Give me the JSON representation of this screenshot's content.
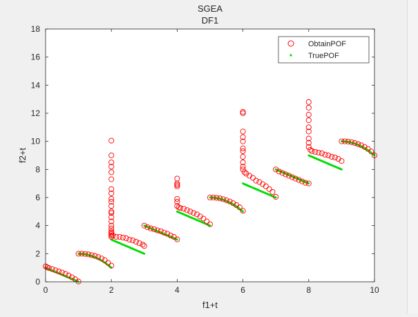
{
  "chart_data": {
    "type": "scatter",
    "title": [
      "SGEA",
      "DF1"
    ],
    "xlabel": "f1+t",
    "ylabel": "f2+t",
    "xlim": [
      0,
      10
    ],
    "ylim": [
      0,
      18
    ],
    "xticks": [
      0,
      2,
      4,
      6,
      8,
      10
    ],
    "yticks": [
      0,
      2,
      4,
      6,
      8,
      10,
      12,
      14,
      16,
      18
    ],
    "grid": false,
    "legend_placement": "top-right",
    "series": [
      {
        "name": "ObtainPOF",
        "marker": "circle-open",
        "color": "#ff0000",
        "points": [
          [
            0.0,
            1.1
          ],
          [
            0.05,
            1.03
          ],
          [
            0.1,
            0.98
          ],
          [
            0.2,
            0.9
          ],
          [
            0.3,
            0.82
          ],
          [
            0.4,
            0.74
          ],
          [
            0.5,
            0.66
          ],
          [
            0.6,
            0.56
          ],
          [
            0.7,
            0.45
          ],
          [
            0.8,
            0.32
          ],
          [
            0.9,
            0.18
          ],
          [
            1.0,
            0.02
          ],
          [
            1.0,
            2.0
          ],
          [
            1.1,
            2.0
          ],
          [
            1.2,
            1.98
          ],
          [
            1.3,
            1.95
          ],
          [
            1.4,
            1.9
          ],
          [
            1.5,
            1.84
          ],
          [
            1.6,
            1.76
          ],
          [
            1.7,
            1.66
          ],
          [
            1.8,
            1.54
          ],
          [
            1.9,
            1.35
          ],
          [
            2.0,
            1.15
          ],
          [
            2.0,
            10.05
          ],
          [
            2.0,
            9.0
          ],
          [
            2.0,
            8.5
          ],
          [
            2.0,
            8.2
          ],
          [
            2.0,
            7.8
          ],
          [
            2.0,
            7.3
          ],
          [
            2.0,
            6.6
          ],
          [
            2.0,
            6.3
          ],
          [
            2.0,
            5.9
          ],
          [
            2.0,
            5.7
          ],
          [
            2.0,
            5.4
          ],
          [
            2.0,
            5.0
          ],
          [
            2.0,
            4.9
          ],
          [
            2.0,
            4.6
          ],
          [
            2.0,
            4.3
          ],
          [
            2.0,
            4.0
          ],
          [
            2.0,
            3.8
          ],
          [
            2.0,
            3.6
          ],
          [
            2.0,
            3.5
          ],
          [
            2.0,
            3.4
          ],
          [
            2.0,
            3.3
          ],
          [
            2.0,
            3.2
          ],
          [
            2.05,
            3.3
          ],
          [
            2.15,
            3.2
          ],
          [
            2.25,
            3.2
          ],
          [
            2.35,
            3.15
          ],
          [
            2.45,
            3.1
          ],
          [
            2.55,
            3.0
          ],
          [
            2.65,
            2.95
          ],
          [
            2.75,
            2.85
          ],
          [
            2.85,
            2.75
          ],
          [
            2.95,
            2.65
          ],
          [
            3.0,
            2.55
          ],
          [
            3.0,
            4.0
          ],
          [
            3.1,
            3.88
          ],
          [
            3.2,
            3.8
          ],
          [
            3.3,
            3.74
          ],
          [
            3.4,
            3.66
          ],
          [
            3.5,
            3.6
          ],
          [
            3.6,
            3.5
          ],
          [
            3.7,
            3.42
          ],
          [
            3.8,
            3.3
          ],
          [
            3.9,
            3.2
          ],
          [
            4.0,
            3.02
          ],
          [
            4.0,
            7.35
          ],
          [
            4.0,
            7.0
          ],
          [
            4.0,
            6.9
          ],
          [
            4.0,
            6.8
          ],
          [
            4.0,
            5.9
          ],
          [
            4.0,
            5.7
          ],
          [
            4.0,
            5.4
          ],
          [
            4.05,
            5.3
          ],
          [
            4.1,
            5.25
          ],
          [
            4.2,
            5.2
          ],
          [
            4.3,
            5.1
          ],
          [
            4.4,
            5.0
          ],
          [
            4.5,
            4.9
          ],
          [
            4.6,
            4.8
          ],
          [
            4.7,
            4.65
          ],
          [
            4.8,
            4.5
          ],
          [
            4.9,
            4.3
          ],
          [
            5.0,
            4.1
          ],
          [
            5.0,
            6.0
          ],
          [
            5.1,
            6.0
          ],
          [
            5.2,
            5.98
          ],
          [
            5.3,
            5.94
          ],
          [
            5.4,
            5.88
          ],
          [
            5.5,
            5.8
          ],
          [
            5.6,
            5.72
          ],
          [
            5.7,
            5.6
          ],
          [
            5.8,
            5.46
          ],
          [
            5.9,
            5.3
          ],
          [
            6.0,
            5.05
          ],
          [
            6.0,
            12.1
          ],
          [
            6.0,
            12.0
          ],
          [
            6.0,
            10.7
          ],
          [
            6.0,
            10.3
          ],
          [
            6.0,
            10.0
          ],
          [
            6.0,
            9.5
          ],
          [
            6.0,
            9.3
          ],
          [
            6.0,
            8.9
          ],
          [
            6.0,
            8.5
          ],
          [
            6.0,
            8.2
          ],
          [
            6.0,
            8.0
          ],
          [
            6.05,
            7.8
          ],
          [
            6.1,
            7.7
          ],
          [
            6.2,
            7.55
          ],
          [
            6.3,
            7.4
          ],
          [
            6.4,
            7.2
          ],
          [
            6.5,
            7.1
          ],
          [
            6.6,
            6.95
          ],
          [
            6.7,
            6.8
          ],
          [
            6.8,
            6.6
          ],
          [
            6.9,
            6.4
          ],
          [
            7.0,
            6.05
          ],
          [
            7.0,
            8.0
          ],
          [
            7.1,
            7.85
          ],
          [
            7.2,
            7.75
          ],
          [
            7.3,
            7.65
          ],
          [
            7.4,
            7.55
          ],
          [
            7.5,
            7.45
          ],
          [
            7.6,
            7.35
          ],
          [
            7.7,
            7.25
          ],
          [
            7.8,
            7.15
          ],
          [
            7.9,
            7.05
          ],
          [
            8.0,
            7.0
          ],
          [
            8.0,
            12.8
          ],
          [
            8.0,
            12.4
          ],
          [
            8.0,
            11.9
          ],
          [
            8.0,
            11.5
          ],
          [
            8.0,
            11.0
          ],
          [
            8.0,
            10.7
          ],
          [
            8.0,
            10.2
          ],
          [
            8.0,
            9.9
          ],
          [
            8.0,
            9.6
          ],
          [
            8.05,
            9.4
          ],
          [
            8.1,
            9.3
          ],
          [
            8.2,
            9.25
          ],
          [
            8.3,
            9.2
          ],
          [
            8.4,
            9.15
          ],
          [
            8.5,
            9.05
          ],
          [
            8.6,
            9.0
          ],
          [
            8.7,
            8.9
          ],
          [
            8.8,
            8.85
          ],
          [
            8.9,
            8.75
          ],
          [
            9.0,
            8.6
          ],
          [
            9.0,
            10.0
          ],
          [
            9.1,
            10.0
          ],
          [
            9.2,
            9.98
          ],
          [
            9.3,
            9.94
          ],
          [
            9.4,
            9.88
          ],
          [
            9.5,
            9.8
          ],
          [
            9.6,
            9.72
          ],
          [
            9.7,
            9.6
          ],
          [
            9.8,
            9.46
          ],
          [
            9.9,
            9.28
          ],
          [
            10.0,
            9.0
          ]
        ]
      },
      {
        "name": "TruePOF",
        "marker": "point",
        "color": "#00dd00",
        "segments": [
          {
            "t": 0,
            "x0": 0,
            "x1": 1,
            "g": 1,
            "shape": "linear"
          },
          {
            "t": 1,
            "x0": 1,
            "x1": 2,
            "g": 1,
            "shape": "concave"
          },
          {
            "t": 2,
            "x0": 2,
            "x1": 3,
            "g": 1,
            "shape": "linear"
          },
          {
            "t": 3,
            "x0": 3,
            "x1": 4,
            "g": 1,
            "shape": "linear"
          },
          {
            "t": 4,
            "x0": 4,
            "x1": 5,
            "g": 1,
            "shape": "linear"
          },
          {
            "t": 5,
            "x0": 5,
            "x1": 6,
            "g": 1,
            "shape": "concave"
          },
          {
            "t": 6,
            "x0": 6,
            "x1": 7,
            "g": 1,
            "shape": "linear"
          },
          {
            "t": 7,
            "x0": 7,
            "x1": 8,
            "g": 1,
            "shape": "linear"
          },
          {
            "t": 8,
            "x0": 8,
            "x1": 9,
            "g": 1,
            "shape": "linear"
          },
          {
            "t": 9,
            "x0": 9,
            "x1": 10,
            "g": 1,
            "shape": "concave"
          }
        ]
      }
    ]
  }
}
